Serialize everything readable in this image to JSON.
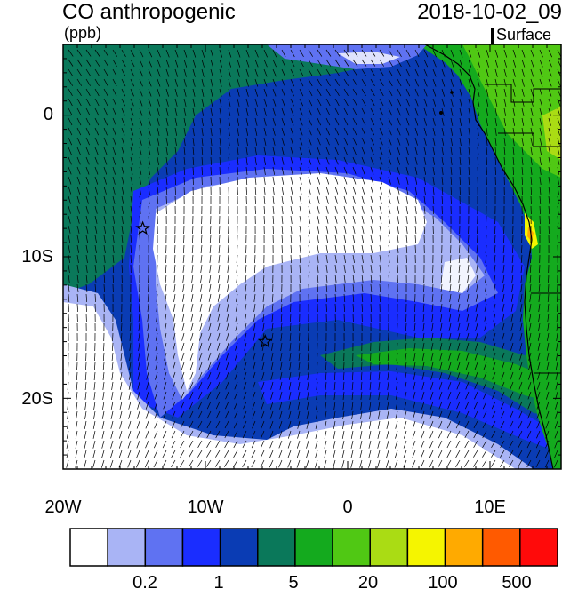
{
  "header": {
    "title": "CO anthropogenic",
    "units": "(ppb)",
    "datetime": "2018-10-02_09",
    "level": "Surface"
  },
  "map": {
    "lon_range": [
      -20,
      15
    ],
    "lat_range": [
      -25,
      5
    ],
    "lat_tick_labels": [
      "0",
      "10S",
      "20S"
    ],
    "lon_tick_labels": [
      "20W",
      "10W",
      "0",
      "10E"
    ],
    "markers": [
      {
        "name": "star-marker-1",
        "lon": -14.4,
        "lat": -8.0
      },
      {
        "name": "star-marker-2",
        "lon": -5.8,
        "lat": -16.0
      }
    ]
  },
  "colorbar": {
    "colors": [
      "#ffffff",
      "#a9b4f5",
      "#5f72f2",
      "#1a2dff",
      "#0a3cb4",
      "#0a785a",
      "#14aa1e",
      "#50c814",
      "#aadc14",
      "#f5f500",
      "#ffaa00",
      "#ff5a00",
      "#ff0a0a"
    ],
    "labels": [
      "0.2",
      "1",
      "5",
      "20",
      "100",
      "500"
    ]
  }
}
